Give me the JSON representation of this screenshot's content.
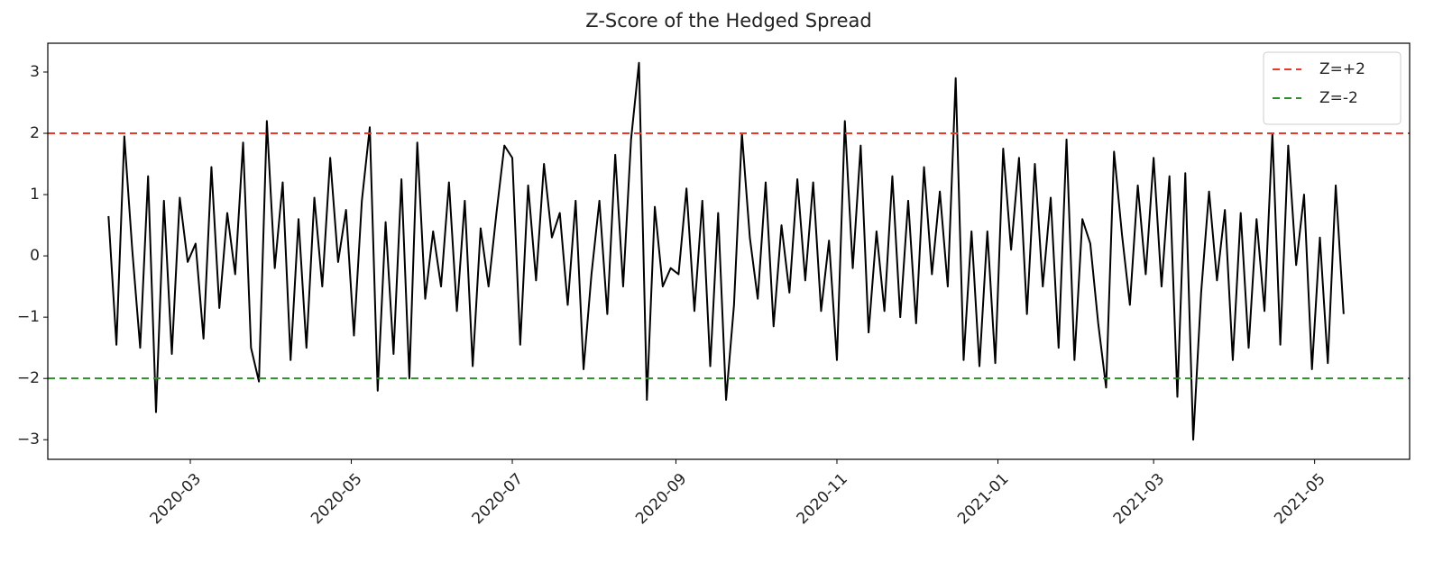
{
  "chart_data": {
    "type": "line",
    "title": "Z-Score of the Hedged Spread",
    "x": [
      "2020-01-30",
      "2020-02-02",
      "2020-02-05",
      "2020-02-08",
      "2020-02-11",
      "2020-02-14",
      "2020-02-17",
      "2020-02-20",
      "2020-02-23",
      "2020-02-26",
      "2020-02-29",
      "2020-03-03",
      "2020-03-06",
      "2020-03-09",
      "2020-03-12",
      "2020-03-15",
      "2020-03-18",
      "2020-03-21",
      "2020-03-24",
      "2020-03-27",
      "2020-03-30",
      "2020-04-02",
      "2020-04-05",
      "2020-04-08",
      "2020-04-11",
      "2020-04-14",
      "2020-04-17",
      "2020-04-20",
      "2020-04-23",
      "2020-04-26",
      "2020-04-29",
      "2020-05-02",
      "2020-05-05",
      "2020-05-08",
      "2020-05-11",
      "2020-05-14",
      "2020-05-17",
      "2020-05-20",
      "2020-05-23",
      "2020-05-26",
      "2020-05-29",
      "2020-06-01",
      "2020-06-04",
      "2020-06-07",
      "2020-06-10",
      "2020-06-13",
      "2020-06-16",
      "2020-06-19",
      "2020-06-22",
      "2020-06-25",
      "2020-06-28",
      "2020-07-01",
      "2020-07-04",
      "2020-07-07",
      "2020-07-10",
      "2020-07-13",
      "2020-07-16",
      "2020-07-19",
      "2020-07-22",
      "2020-07-25",
      "2020-07-28",
      "2020-07-31",
      "2020-08-03",
      "2020-08-06",
      "2020-08-09",
      "2020-08-12",
      "2020-08-15",
      "2020-08-18",
      "2020-08-21",
      "2020-08-24",
      "2020-08-27",
      "2020-08-30",
      "2020-09-02",
      "2020-09-05",
      "2020-09-08",
      "2020-09-11",
      "2020-09-14",
      "2020-09-17",
      "2020-09-20",
      "2020-09-23",
      "2020-09-26",
      "2020-09-29",
      "2020-10-02",
      "2020-10-05",
      "2020-10-08",
      "2020-10-11",
      "2020-10-14",
      "2020-10-17",
      "2020-10-20",
      "2020-10-23",
      "2020-10-26",
      "2020-10-29",
      "2020-11-01",
      "2020-11-04",
      "2020-11-07",
      "2020-11-10",
      "2020-11-13",
      "2020-11-16",
      "2020-11-19",
      "2020-11-22",
      "2020-11-25",
      "2020-11-28",
      "2020-12-01",
      "2020-12-04",
      "2020-12-07",
      "2020-12-10",
      "2020-12-13",
      "2020-12-16",
      "2020-12-19",
      "2020-12-22",
      "2020-12-25",
      "2020-12-28",
      "2020-12-31",
      "2021-01-03",
      "2021-01-06",
      "2021-01-09",
      "2021-01-12",
      "2021-01-15",
      "2021-01-18",
      "2021-01-21",
      "2021-01-24",
      "2021-01-27",
      "2021-01-30",
      "2021-02-02",
      "2021-02-05",
      "2021-02-08",
      "2021-02-11",
      "2021-02-14",
      "2021-02-17",
      "2021-02-20",
      "2021-02-23",
      "2021-02-26",
      "2021-03-01",
      "2021-03-04",
      "2021-03-07",
      "2021-03-10",
      "2021-03-13",
      "2021-03-16",
      "2021-03-19",
      "2021-03-22",
      "2021-03-25",
      "2021-03-28",
      "2021-03-31",
      "2021-04-03",
      "2021-04-06",
      "2021-04-09",
      "2021-04-12",
      "2021-04-15",
      "2021-04-18",
      "2021-04-21",
      "2021-04-24",
      "2021-04-27",
      "2021-04-30",
      "2021-05-03",
      "2021-05-06",
      "2021-05-09",
      "2021-05-12"
    ],
    "values": [
      0.65,
      -1.45,
      1.95,
      0.1,
      -1.5,
      1.3,
      -2.55,
      0.9,
      -1.6,
      0.95,
      -0.1,
      0.2,
      -1.35,
      1.45,
      -0.85,
      0.7,
      -0.3,
      1.85,
      -1.5,
      -2.05,
      2.2,
      -0.2,
      1.2,
      -1.7,
      0.6,
      -1.5,
      0.95,
      -0.5,
      1.6,
      -0.1,
      0.75,
      -1.3,
      0.9,
      2.1,
      -2.2,
      0.55,
      -1.6,
      1.25,
      -2.0,
      1.85,
      -0.7,
      0.4,
      -0.5,
      1.2,
      -0.9,
      0.9,
      -1.8,
      0.45,
      -0.5,
      0.7,
      1.8,
      1.6,
      -1.45,
      1.15,
      -0.4,
      1.5,
      0.3,
      0.7,
      -0.8,
      0.9,
      -1.85,
      -0.3,
      0.9,
      -0.95,
      1.65,
      -0.5,
      1.9,
      3.15,
      -2.35,
      0.8,
      -0.5,
      -0.2,
      -0.3,
      1.1,
      -0.9,
      0.9,
      -1.8,
      0.7,
      -2.35,
      -0.8,
      2.0,
      0.3,
      -0.7,
      1.2,
      -1.15,
      0.5,
      -0.6,
      1.25,
      -0.4,
      1.2,
      -0.9,
      0.25,
      -1.7,
      2.2,
      -0.2,
      1.8,
      -1.25,
      0.4,
      -0.9,
      1.3,
      -1.0,
      0.9,
      -1.1,
      1.45,
      -0.3,
      1.05,
      -0.5,
      2.9,
      -1.7,
      0.4,
      -1.8,
      0.4,
      -1.75,
      1.75,
      0.1,
      1.6,
      -0.95,
      1.5,
      -0.5,
      0.95,
      -1.5,
      1.9,
      -1.7,
      0.6,
      0.2,
      -1.1,
      -2.15,
      1.7,
      0.35,
      -0.8,
      1.15,
      -0.3,
      1.6,
      -0.5,
      1.3,
      -2.3,
      1.35,
      -3.0,
      -0.6,
      1.05,
      -0.4,
      0.75,
      -1.7,
      0.7,
      -1.5,
      0.6,
      -0.9,
      2.0,
      -1.45,
      1.8,
      -0.15,
      1.0,
      -1.85,
      0.3,
      -1.75,
      1.15,
      -0.95
    ],
    "color": "#000000",
    "hlines": [
      {
        "value": 2,
        "label": "Z=+2",
        "color": "#e8392a"
      },
      {
        "value": -2,
        "label": "Z=-2",
        "color": "#2e8b2e"
      }
    ],
    "legend": "upper right",
    "xlim": [
      "2020-01-07",
      "2021-06-06"
    ],
    "xticks": [
      "2020-03",
      "2020-05",
      "2020-07",
      "2020-09",
      "2020-11",
      "2021-01",
      "2021-03",
      "2021-05"
    ],
    "ylim": [
      -3.32,
      3.47
    ],
    "yticks": [
      {
        "value": -3,
        "label": "−3"
      },
      {
        "value": -2,
        "label": "−2"
      },
      {
        "value": -1,
        "label": "−1"
      },
      0,
      1,
      2,
      3
    ]
  }
}
